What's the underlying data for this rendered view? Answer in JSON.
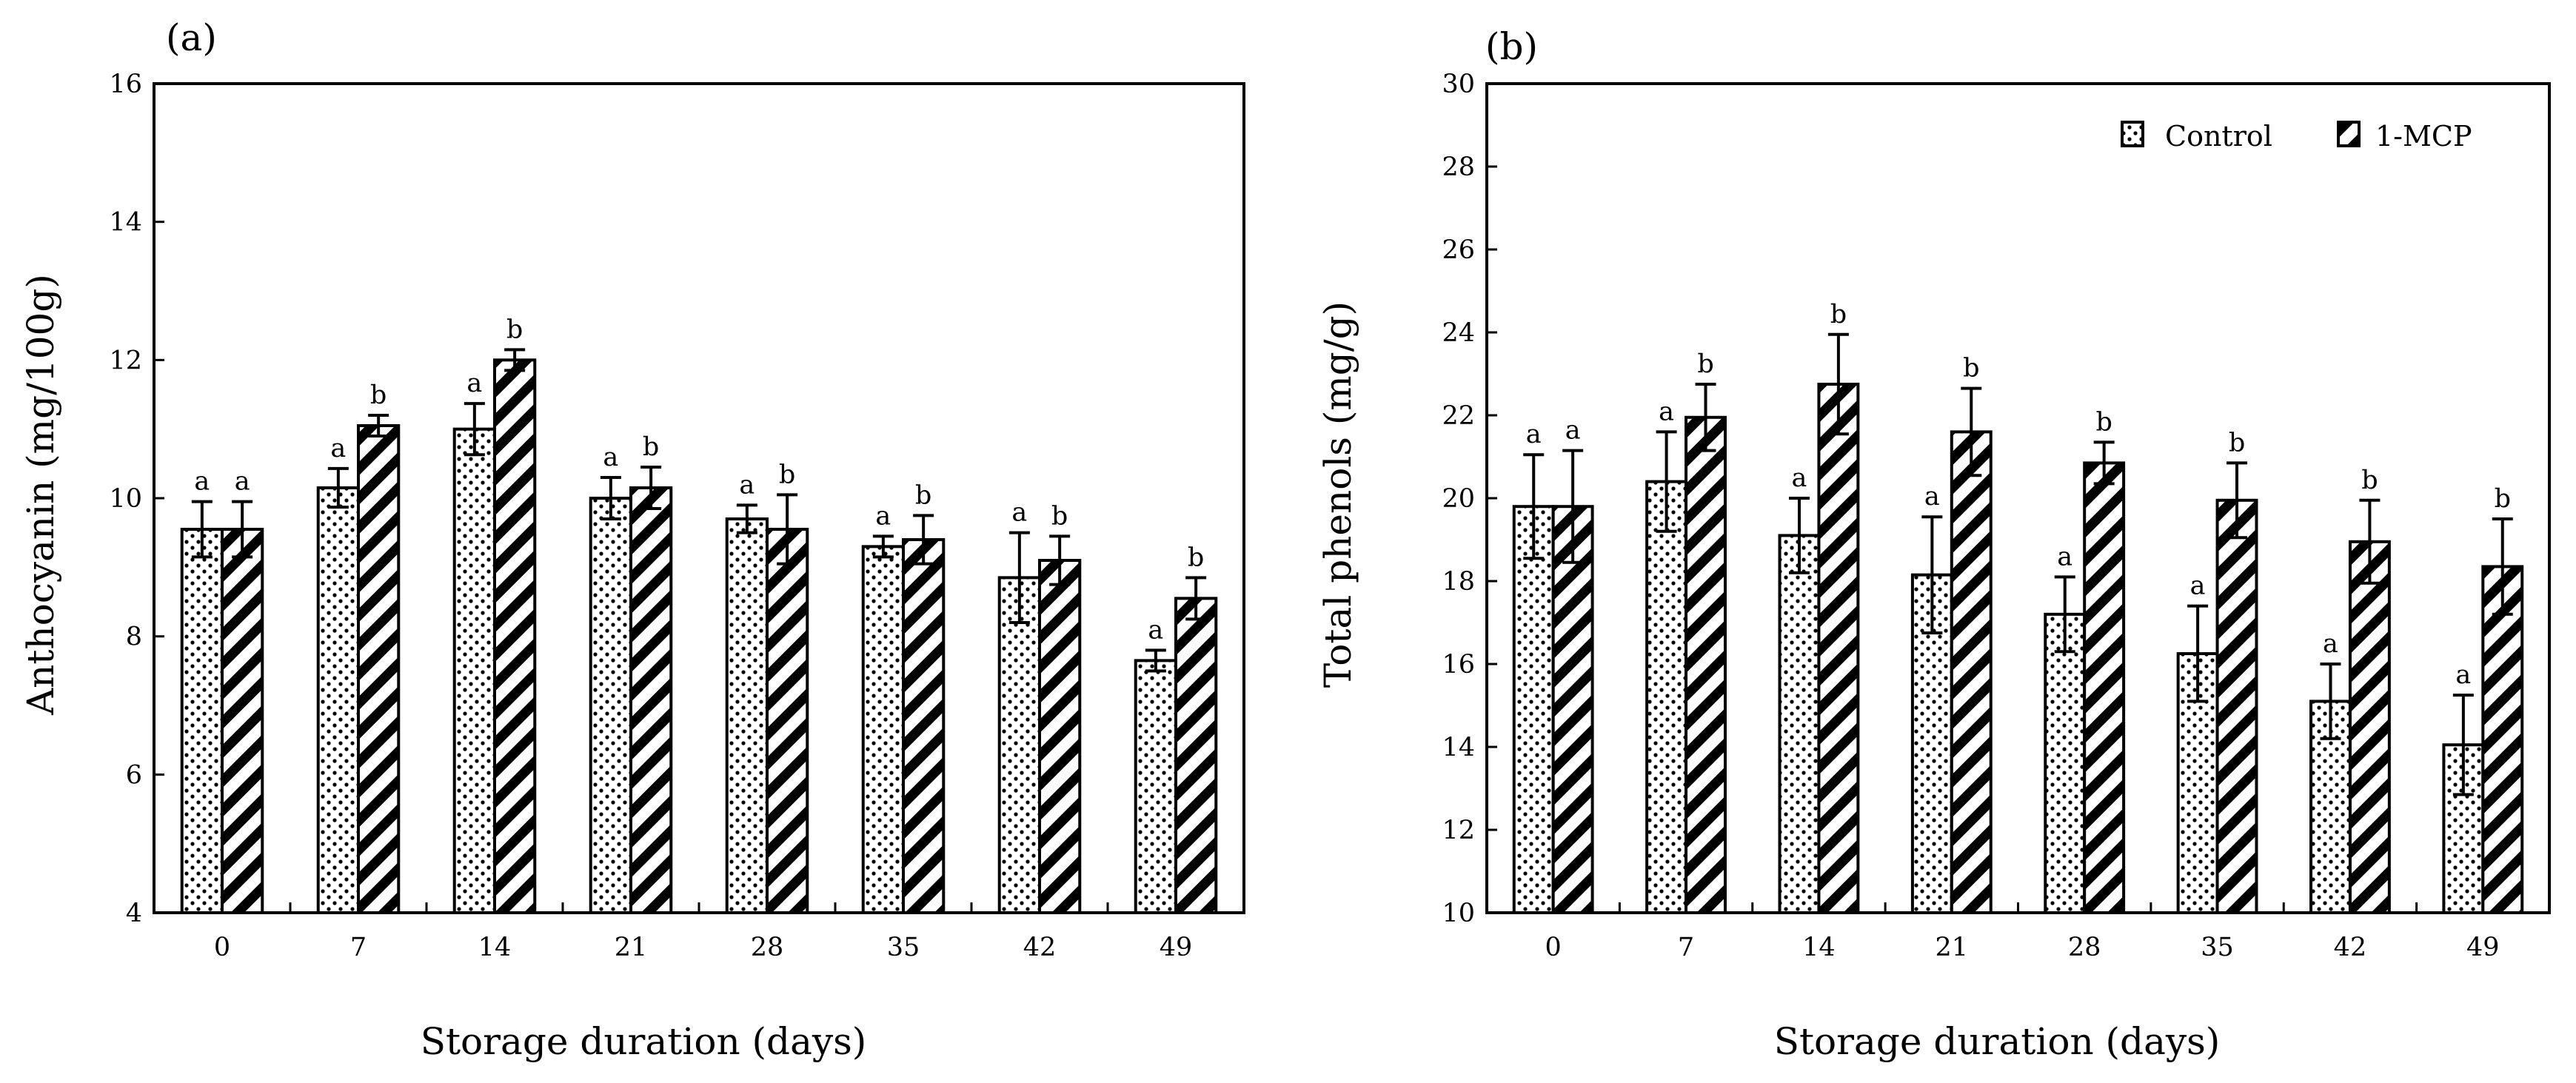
{
  "chart_data": [
    {
      "panel_label": "(a)",
      "type": "bar",
      "xlabel": "Storage duration (days)",
      "ylabel": "Anthocyanin (mg/100g)",
      "ylim": [
        4,
        16
      ],
      "yticks": [
        "4",
        "6",
        "8",
        "10",
        "12",
        "14",
        "16"
      ],
      "categories": [
        "0",
        "7",
        "14",
        "21",
        "28",
        "35",
        "42",
        "49"
      ],
      "series": [
        {
          "name": "Control",
          "values": [
            9.55,
            10.15,
            11.0,
            10.0,
            9.7,
            9.3,
            8.85,
            7.65
          ],
          "errors": [
            0.4,
            0.28,
            0.37,
            0.3,
            0.2,
            0.15,
            0.65,
            0.15
          ],
          "letters": [
            "a",
            "a",
            "a",
            "a",
            "a",
            "a",
            "a",
            "a"
          ]
        },
        {
          "name": "1-MCP",
          "values": [
            9.55,
            11.05,
            12.0,
            10.15,
            9.55,
            9.4,
            9.1,
            8.55
          ],
          "errors": [
            0.4,
            0.15,
            0.15,
            0.3,
            0.5,
            0.35,
            0.35,
            0.3
          ],
          "letters": [
            "a",
            "b",
            "b",
            "b",
            "b",
            "b",
            "b",
            "b"
          ]
        }
      ]
    },
    {
      "panel_label": "(b)",
      "type": "bar",
      "xlabel": "Storage duration (days)",
      "ylabel": "Total phenols (mg/g)",
      "ylim": [
        10,
        30
      ],
      "yticks": [
        "10",
        "12",
        "14",
        "16",
        "18",
        "20",
        "22",
        "24",
        "26",
        "28",
        "30"
      ],
      "categories": [
        "0",
        "7",
        "14",
        "21",
        "28",
        "35",
        "42",
        "49"
      ],
      "legend_position": "top-right",
      "series": [
        {
          "name": "Control",
          "values": [
            19.8,
            20.4,
            19.1,
            18.15,
            17.2,
            16.25,
            15.1,
            14.05
          ],
          "errors": [
            1.25,
            1.2,
            0.9,
            1.4,
            0.9,
            1.15,
            0.9,
            1.2
          ],
          "letters": [
            "a",
            "a",
            "a",
            "a",
            "a",
            "a",
            "a",
            "a"
          ]
        },
        {
          "name": "1-MCP",
          "values": [
            19.8,
            21.95,
            22.75,
            21.6,
            20.85,
            19.95,
            18.95,
            18.35
          ],
          "errors": [
            1.35,
            0.8,
            1.2,
            1.05,
            0.5,
            0.9,
            1.0,
            1.15
          ],
          "letters": [
            "a",
            "b",
            "b",
            "b",
            "b",
            "b",
            "b",
            "b"
          ]
        }
      ]
    }
  ],
  "legend": {
    "control_label": "Control",
    "mcp_label": "1-MCP"
  }
}
